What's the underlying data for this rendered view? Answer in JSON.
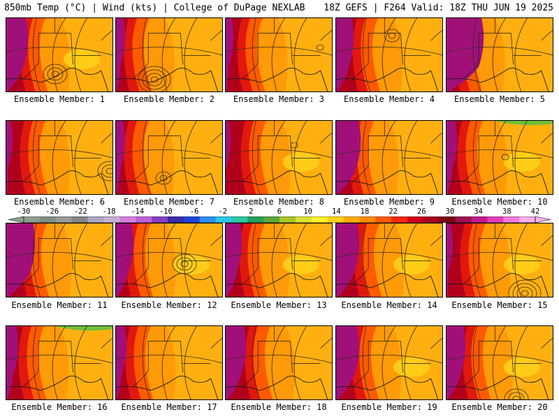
{
  "header": {
    "left": "850mb Temp (°C) | Wind (kts) | College of DuPage NEXLAB",
    "right": "18Z GEFS | F264 Valid: 18Z THU JUN 19 2025"
  },
  "colorbar": {
    "ticks": [
      "-30",
      "-26",
      "-22",
      "-18",
      "-14",
      "-10",
      "-6",
      "-2",
      "2",
      "6",
      "10",
      "14",
      "18",
      "22",
      "26",
      "30",
      "34",
      "38",
      "42"
    ],
    "colors": [
      "#8c9e8e",
      "#7d8f80",
      "#9a9a9a",
      "#858585",
      "#a8a8bf",
      "#c6b0d6",
      "#d77fe0",
      "#c060d8",
      "#8a3fbf",
      "#3a2aa8",
      "#1c44d6",
      "#2e8ff0",
      "#29c7e6",
      "#2cc7a3",
      "#20a05a",
      "#5da63a",
      "#a5c728",
      "#d7e330",
      "#fff32a",
      "#ffd21a",
      "#ffad0d",
      "#ff8a00",
      "#ff5a00",
      "#f42a0a",
      "#d5001a",
      "#a80020",
      "#7a0014",
      "#9c0f50",
      "#c41a8c",
      "#e23db8",
      "#f27ad9",
      "#f7b0ec"
    ]
  },
  "members": [
    {
      "label": "Ensemble Member: 1"
    },
    {
      "label": "Ensemble Member: 2"
    },
    {
      "label": "Ensemble Member: 3"
    },
    {
      "label": "Ensemble Member: 4"
    },
    {
      "label": "Ensemble Member: 5"
    },
    {
      "label": "Ensemble Member: 6"
    },
    {
      "label": "Ensemble Member: 7"
    },
    {
      "label": "Ensemble Member: 8"
    },
    {
      "label": "Ensemble Member: 9"
    },
    {
      "label": "Ensemble Member: 10"
    },
    {
      "label": "Ensemble Member: 11"
    },
    {
      "label": "Ensemble Member: 12"
    },
    {
      "label": "Ensemble Member: 13"
    },
    {
      "label": "Ensemble Member: 14"
    },
    {
      "label": "Ensemble Member: 15"
    },
    {
      "label": "Ensemble Member: 16"
    },
    {
      "label": "Ensemble Member: 17"
    },
    {
      "label": "Ensemble Member: 18"
    },
    {
      "label": "Ensemble Member: 19"
    },
    {
      "label": "Ensemble Member: 20"
    }
  ],
  "map_colors": {
    "magenta": "#a01078",
    "deep_red": "#b0001c",
    "red": "#e0180e",
    "orange_red": "#ff5a00",
    "orange": "#ff9a08",
    "light_orange": "#ffb010",
    "yellow": "#ffd21a",
    "green": "#6fbf3a",
    "contour": "#3a2a20",
    "border": "#1a1a1a"
  }
}
